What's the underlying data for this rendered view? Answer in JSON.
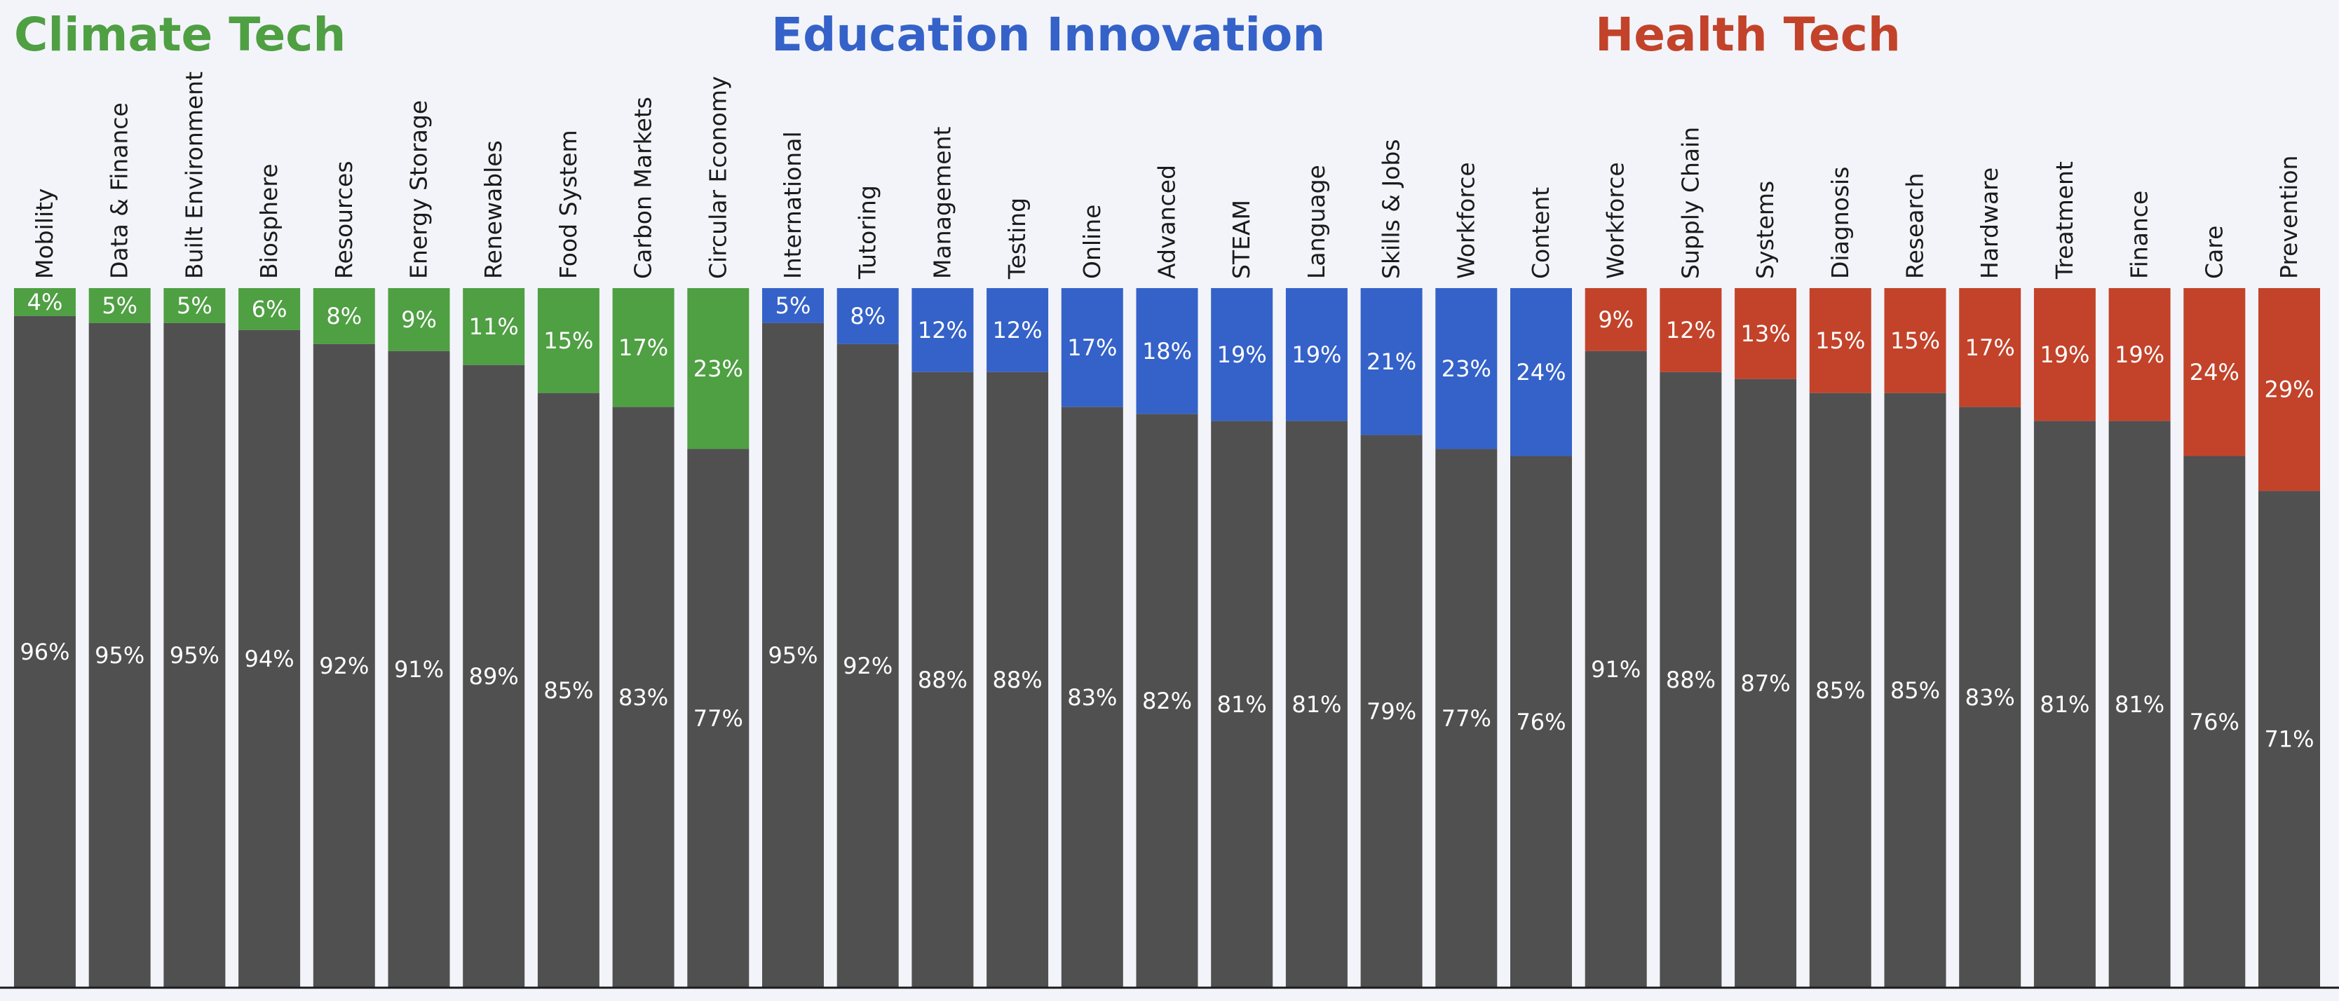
{
  "chart_data": {
    "type": "bar",
    "stacked": true,
    "orientation": "vertical",
    "ylim": [
      0,
      100
    ],
    "value_unit": "%",
    "remainder_color": "#505050",
    "groups": [
      {
        "title": "Climate Tech",
        "color": "#4f9f43",
        "categories": [
          "Mobility",
          "Data & Finance",
          "Built Environment",
          "Biosphere",
          "Resources",
          "Energy Storage",
          "Renewables",
          "Food System",
          "Carbon Markets",
          "Circular Economy"
        ],
        "top_values": [
          4,
          5,
          5,
          6,
          8,
          9,
          11,
          15,
          17,
          23
        ],
        "top_labels": [
          "4%",
          "5%",
          "5%",
          "6%",
          "8%",
          "9%",
          "11%",
          "15%",
          "17%",
          "23%"
        ],
        "bottom_values": [
          96,
          95,
          95,
          94,
          92,
          91,
          89,
          85,
          83,
          77
        ],
        "bottom_labels": [
          "96%",
          "95%",
          "95%",
          "94%",
          "92%",
          "91%",
          "89%",
          "85%",
          "83%",
          "77%"
        ]
      },
      {
        "title": "Education Innovation",
        "color": "#3562c9",
        "categories": [
          "International",
          "Tutoring",
          "Management",
          "Testing",
          "Online",
          "Advanced",
          "STEAM",
          "Language",
          "Skills & Jobs",
          "Workforce",
          "Content"
        ],
        "top_values": [
          5,
          8,
          12,
          12,
          17,
          18,
          19,
          19,
          21,
          23,
          24
        ],
        "top_labels": [
          "5%",
          "8%",
          "12%",
          "12%",
          "17%",
          "18%",
          "19%",
          "19%",
          "21%",
          "23%",
          "24%"
        ],
        "bottom_values": [
          95,
          92,
          88,
          88,
          83,
          82,
          81,
          81,
          79,
          77,
          76
        ],
        "bottom_labels": [
          "95%",
          "92%",
          "88%",
          "88%",
          "83%",
          "82%",
          "81%",
          "81%",
          "79%",
          "77%",
          "76%"
        ]
      },
      {
        "title": "Health Tech",
        "color": "#c2432a",
        "categories": [
          "Workforce",
          "Supply Chain",
          "Systems",
          "Diagnosis",
          "Research",
          "Hardware",
          "Treatment",
          "Finance",
          "Care",
          "Prevention"
        ],
        "top_values": [
          9,
          12,
          13,
          15,
          15,
          17,
          19,
          19,
          24,
          29
        ],
        "top_labels": [
          "9%",
          "12%",
          "13%",
          "15%",
          "15%",
          "17%",
          "19%",
          "19%",
          "24%",
          "29%"
        ],
        "bottom_values": [
          91,
          88,
          87,
          85,
          85,
          83,
          81,
          81,
          76,
          71
        ],
        "bottom_labels": [
          "91%",
          "88%",
          "87%",
          "85%",
          "85%",
          "83%",
          "81%",
          "81%",
          "76%",
          "71%"
        ]
      }
    ]
  }
}
